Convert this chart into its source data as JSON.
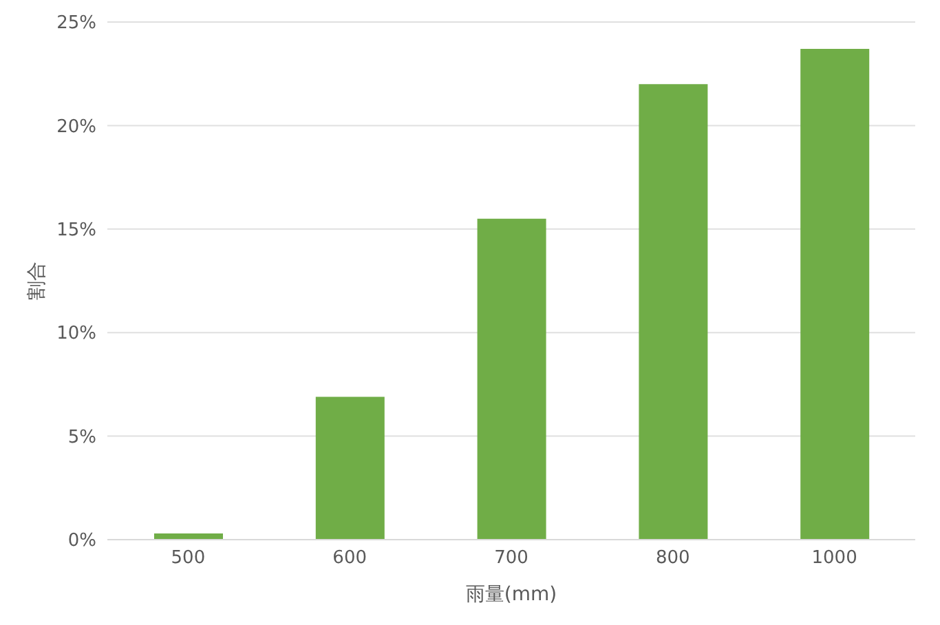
{
  "chart_data": {
    "type": "bar",
    "xlabel": "雨量(mm)",
    "ylabel": "割合",
    "categories": [
      "500",
      "600",
      "700",
      "800",
      "1000"
    ],
    "values": [
      0.3,
      6.9,
      15.5,
      22.0,
      23.7
    ],
    "color": "#70ad47",
    "ylim": [
      0,
      25
    ],
    "yticks": [
      {
        "value": 0,
        "label": "0%"
      },
      {
        "value": 5,
        "label": "5%"
      },
      {
        "value": 10,
        "label": "10%"
      },
      {
        "value": 15,
        "label": "15%"
      },
      {
        "value": 20,
        "label": "20%"
      },
      {
        "value": 25,
        "label": "25%"
      }
    ],
    "grid": "y"
  }
}
